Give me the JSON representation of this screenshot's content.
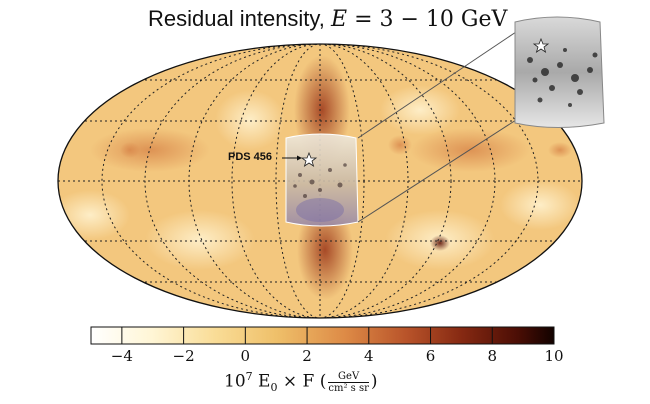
{
  "title": {
    "prefix": "Residual intensity, ",
    "variable": "E",
    "equals": " = 3 − 10 ",
    "unit": "GeV"
  },
  "source_label": "PDS 456",
  "colorbar": {
    "ticks": [
      "−4",
      "−2",
      "0",
      "2",
      "4",
      "6",
      "8",
      "10"
    ],
    "tick_values": [
      -4,
      -2,
      0,
      2,
      4,
      6,
      8,
      10
    ],
    "range": [
      -5,
      10
    ],
    "colors": [
      "#ffffff",
      "#fff6d6",
      "#f9dc96",
      "#efc06a",
      "#dd8a46",
      "#b9542a",
      "#862912",
      "#4c0e05",
      "#120200"
    ]
  },
  "axis_label": {
    "coef": "10",
    "exp": "7",
    "symbol": "E",
    "sub": "0",
    "times": " × F ",
    "unit_num": "GeV",
    "unit_den": "cm² s sr"
  }
}
